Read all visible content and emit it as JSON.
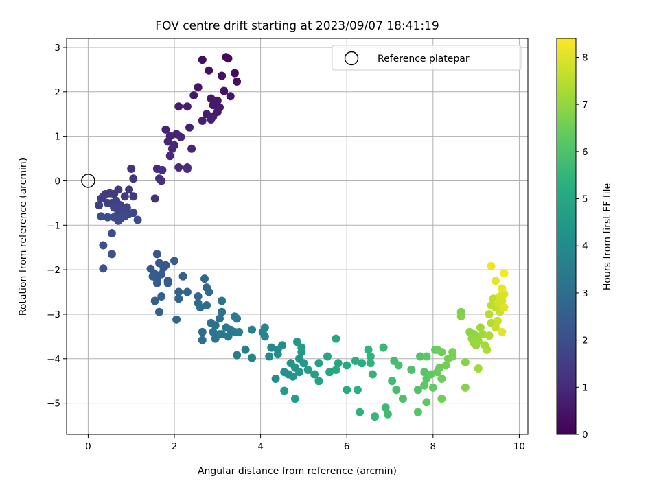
{
  "chart_data": {
    "type": "scatter",
    "title": "FOV centre drift starting at 2023/09/07 18:41:19",
    "xlabel": "Angular distance from reference (arcmin)",
    "ylabel": "Rotation from reference (arcmin)",
    "xlim": [
      -0.5,
      10.2
    ],
    "ylim": [
      -5.7,
      3.2
    ],
    "xticks": [
      "0",
      "2",
      "4",
      "6",
      "8",
      "10"
    ],
    "yticks": [
      "3",
      "2",
      "1",
      "0",
      "−1",
      "−2",
      "−3",
      "−4",
      "−5"
    ],
    "xtick_values": [
      0,
      2,
      4,
      6,
      8,
      10
    ],
    "ytick_values": [
      3,
      2,
      1,
      0,
      -1,
      -2,
      -3,
      -4,
      -5
    ],
    "grid": true,
    "legend": {
      "position": "top-right",
      "entries": [
        "Reference platepar"
      ]
    },
    "reference_point": {
      "x": 0,
      "y": 0
    },
    "colorbar": {
      "label": "Hours from first FF file",
      "colormap": "viridis",
      "range": [
        0,
        8.4
      ],
      "ticks": [
        "0",
        "1",
        "2",
        "3",
        "4",
        "5",
        "6",
        "7",
        "8"
      ],
      "tick_values": [
        0,
        1,
        2,
        3,
        4,
        5,
        6,
        7,
        8
      ]
    },
    "points": [
      [
        3.2,
        2.78,
        0.15
      ],
      [
        3.25,
        2.75,
        0.2
      ],
      [
        2.65,
        2.72,
        0.3
      ],
      [
        2.8,
        2.48,
        0.35
      ],
      [
        3.1,
        2.36,
        0.4
      ],
      [
        3.4,
        2.42,
        0.25
      ],
      [
        3.45,
        2.23,
        0.3
      ],
      [
        2.55,
        2.1,
        0.5
      ],
      [
        2.45,
        1.92,
        0.55
      ],
      [
        3.15,
        2.02,
        0.45
      ],
      [
        3.3,
        1.9,
        0.5
      ],
      [
        2.85,
        1.85,
        0.55
      ],
      [
        3.0,
        1.8,
        0.6
      ],
      [
        2.1,
        1.67,
        0.7
      ],
      [
        2.3,
        1.67,
        0.72
      ],
      [
        2.9,
        1.7,
        0.6
      ],
      [
        3.05,
        1.65,
        0.62
      ],
      [
        3.0,
        1.55,
        0.65
      ],
      [
        2.75,
        1.5,
        0.65
      ],
      [
        2.9,
        1.45,
        0.7
      ],
      [
        2.65,
        1.35,
        0.7
      ],
      [
        2.85,
        1.38,
        0.75
      ],
      [
        2.35,
        1.2,
        0.75
      ],
      [
        1.8,
        1.15,
        0.8
      ],
      [
        1.9,
        1.0,
        0.85
      ],
      [
        2.05,
        1.05,
        0.8
      ],
      [
        2.15,
        0.98,
        0.85
      ],
      [
        1.85,
        0.88,
        0.9
      ],
      [
        2.0,
        0.8,
        0.88
      ],
      [
        1.95,
        0.72,
        0.92
      ],
      [
        2.4,
        0.72,
        0.9
      ],
      [
        1.9,
        0.56,
        0.95
      ],
      [
        1.6,
        0.27,
        1.0
      ],
      [
        1.72,
        0.24,
        1.05
      ],
      [
        2.1,
        0.3,
        1.0
      ],
      [
        2.3,
        0.3,
        1.05
      ],
      [
        2.3,
        0.27,
        1.1
      ],
      [
        1.65,
        0.05,
        1.1
      ],
      [
        1.7,
        0.0,
        1.15
      ],
      [
        1.55,
        -0.4,
        1.2
      ],
      [
        1.0,
        0.27,
        1.2
      ],
      [
        1.05,
        0.05,
        1.25
      ],
      [
        0.95,
        -0.2,
        1.3
      ],
      [
        0.7,
        -0.2,
        1.35
      ],
      [
        0.85,
        -0.35,
        1.4
      ],
      [
        1.05,
        -0.35,
        1.4
      ],
      [
        0.6,
        -0.3,
        1.45
      ],
      [
        0.5,
        -0.28,
        1.45
      ],
      [
        0.4,
        -0.3,
        1.5
      ],
      [
        0.35,
        -0.35,
        1.5
      ],
      [
        0.3,
        -0.4,
        1.55
      ],
      [
        0.25,
        -0.55,
        1.55
      ],
      [
        0.45,
        -0.5,
        1.6
      ],
      [
        0.55,
        -0.5,
        1.6
      ],
      [
        0.65,
        -0.45,
        1.65
      ],
      [
        0.75,
        -0.55,
        1.65
      ],
      [
        0.6,
        -0.6,
        1.7
      ],
      [
        0.7,
        -0.7,
        1.7
      ],
      [
        0.8,
        -0.65,
        1.75
      ],
      [
        0.9,
        -0.6,
        1.75
      ],
      [
        0.95,
        -0.75,
        1.8
      ],
      [
        1.05,
        -0.72,
        1.8
      ],
      [
        0.85,
        -0.8,
        1.85
      ],
      [
        0.75,
        -0.85,
        1.85
      ],
      [
        0.7,
        -0.9,
        1.9
      ],
      [
        0.6,
        -0.82,
        1.9
      ],
      [
        0.45,
        -0.82,
        1.95
      ],
      [
        0.3,
        -0.8,
        1.95
      ],
      [
        1.15,
        -0.88,
        2.0
      ],
      [
        0.55,
        -1.18,
        2.0
      ],
      [
        0.35,
        -1.45,
        2.05
      ],
      [
        0.55,
        -1.65,
        2.1
      ],
      [
        0.35,
        -1.97,
        2.15
      ],
      [
        1.6,
        -1.65,
        2.2
      ],
      [
        1.65,
        -1.85,
        2.25
      ],
      [
        1.75,
        -1.95,
        2.25
      ],
      [
        1.8,
        -1.9,
        2.3
      ],
      [
        1.45,
        -1.98,
        2.3
      ],
      [
        1.55,
        -2.1,
        2.35
      ],
      [
        1.6,
        -2.2,
        2.35
      ],
      [
        1.7,
        -2.1,
        2.4
      ],
      [
        1.85,
        -2.25,
        2.4
      ],
      [
        1.85,
        -2.3,
        2.45
      ],
      [
        1.6,
        -2.3,
        2.45
      ],
      [
        1.5,
        -2.15,
        2.5
      ],
      [
        2.0,
        -1.8,
        2.5
      ],
      [
        2.2,
        -2.15,
        2.55
      ],
      [
        1.7,
        -2.6,
        2.6
      ],
      [
        1.55,
        -2.7,
        2.6
      ],
      [
        1.65,
        -2.95,
        2.65
      ],
      [
        2.1,
        -2.5,
        2.65
      ],
      [
        2.1,
        -2.65,
        2.7
      ],
      [
        2.3,
        -2.5,
        2.75
      ],
      [
        2.05,
        -3.12,
        2.75
      ],
      [
        2.55,
        -2.6,
        2.8
      ],
      [
        2.7,
        -2.2,
        2.8
      ],
      [
        2.75,
        -2.4,
        2.85
      ],
      [
        2.8,
        -2.5,
        2.85
      ],
      [
        2.55,
        -2.75,
        2.9
      ],
      [
        2.6,
        -2.85,
        2.95
      ],
      [
        2.75,
        -2.8,
        3.0
      ],
      [
        2.65,
        -3.4,
        3.0
      ],
      [
        2.65,
        -3.58,
        3.05
      ],
      [
        2.85,
        -3.2,
        3.1
      ],
      [
        2.95,
        -3.25,
        3.1
      ],
      [
        3.05,
        -3.1,
        3.15
      ],
      [
        3.1,
        -2.95,
        3.15
      ],
      [
        3.1,
        -2.7,
        3.2
      ],
      [
        2.9,
        -3.4,
        3.2
      ],
      [
        2.95,
        -3.55,
        3.25
      ],
      [
        3.1,
        -3.45,
        3.3
      ],
      [
        3.2,
        -3.3,
        3.3
      ],
      [
        3.25,
        -3.5,
        3.35
      ],
      [
        3.05,
        -3.45,
        3.35
      ],
      [
        3.3,
        -3.35,
        3.4
      ],
      [
        3.4,
        -3.4,
        3.45
      ],
      [
        3.4,
        -3.05,
        3.5
      ],
      [
        3.45,
        -3.1,
        3.5
      ],
      [
        3.5,
        -3.4,
        3.55
      ],
      [
        3.45,
        -3.92,
        3.6
      ],
      [
        3.65,
        -3.8,
        3.65
      ],
      [
        3.8,
        -3.35,
        3.7
      ],
      [
        3.8,
        -3.98,
        3.75
      ],
      [
        4.05,
        -3.4,
        3.8
      ],
      [
        4.1,
        -3.5,
        3.85
      ],
      [
        4.1,
        -3.3,
        3.85
      ],
      [
        4.25,
        -3.75,
        3.9
      ],
      [
        4.2,
        -3.95,
        3.95
      ],
      [
        4.4,
        -3.8,
        4.0
      ],
      [
        4.4,
        -3.9,
        4.05
      ],
      [
        4.5,
        -3.7,
        4.05
      ],
      [
        4.35,
        -4.45,
        4.1
      ],
      [
        4.55,
        -4.3,
        4.15
      ],
      [
        4.7,
        -4.1,
        4.2
      ],
      [
        4.65,
        -4.35,
        4.25
      ],
      [
        4.8,
        -4.2,
        4.3
      ],
      [
        4.75,
        -4.4,
        4.3
      ],
      [
        4.9,
        -4.0,
        4.35
      ],
      [
        4.85,
        -3.62,
        4.4
      ],
      [
        4.95,
        -3.85,
        4.4
      ],
      [
        4.9,
        -4.3,
        4.45
      ],
      [
        5.0,
        -4.1,
        4.5
      ],
      [
        4.95,
        -3.75,
        4.55
      ],
      [
        5.1,
        -4.25,
        4.6
      ],
      [
        4.55,
        -4.72,
        4.65
      ],
      [
        4.8,
        -4.9,
        4.7
      ],
      [
        5.25,
        -4.35,
        4.75
      ],
      [
        5.35,
        -4.1,
        4.8
      ],
      [
        5.35,
        -4.5,
        4.85
      ],
      [
        5.55,
        -3.95,
        4.9
      ],
      [
        5.6,
        -4.3,
        4.95
      ],
      [
        5.75,
        -3.55,
        5.0
      ],
      [
        5.8,
        -4.1,
        5.0
      ],
      [
        5.75,
        -4.25,
        5.05
      ],
      [
        6.0,
        -4.15,
        5.1
      ],
      [
        6.0,
        -4.7,
        5.15
      ],
      [
        6.2,
        -4.05,
        5.2
      ],
      [
        6.35,
        -4.1,
        5.25
      ],
      [
        6.25,
        -4.7,
        5.3
      ],
      [
        6.3,
        -5.2,
        5.35
      ],
      [
        6.5,
        -3.8,
        5.4
      ],
      [
        6.55,
        -3.95,
        5.45
      ],
      [
        6.55,
        -4.1,
        5.45
      ],
      [
        6.6,
        -4.35,
        5.5
      ],
      [
        6.65,
        -5.3,
        5.55
      ],
      [
        6.85,
        -3.75,
        5.6
      ],
      [
        6.9,
        -5.1,
        5.65
      ],
      [
        6.95,
        -5.25,
        5.7
      ],
      [
        7.05,
        -4.5,
        5.75
      ],
      [
        7.1,
        -4.05,
        5.8
      ],
      [
        7.15,
        -4.7,
        5.85
      ],
      [
        7.2,
        -4.15,
        5.9
      ],
      [
        7.3,
        -4.9,
        5.95
      ],
      [
        7.5,
        -4.25,
        6.0
      ],
      [
        7.65,
        -4.7,
        6.05
      ],
      [
        7.7,
        -3.95,
        6.1
      ],
      [
        7.65,
        -5.2,
        6.15
      ],
      [
        7.8,
        -4.3,
        6.15
      ],
      [
        7.85,
        -4.45,
        6.2
      ],
      [
        7.85,
        -3.95,
        6.25
      ],
      [
        7.8,
        -4.6,
        6.25
      ],
      [
        7.85,
        -4.98,
        6.3
      ],
      [
        7.95,
        -4.35,
        6.3
      ],
      [
        8.0,
        -4.65,
        6.35
      ],
      [
        8.05,
        -3.8,
        6.35
      ],
      [
        8.1,
        -4.3,
        6.4
      ],
      [
        8.15,
        -4.2,
        6.45
      ],
      [
        8.1,
        -3.8,
        6.45
      ],
      [
        8.2,
        -4.45,
        6.5
      ],
      [
        8.2,
        -3.85,
        6.5
      ],
      [
        8.2,
        -4.9,
        6.55
      ],
      [
        8.3,
        -4.15,
        6.6
      ],
      [
        8.35,
        -4.0,
        6.6
      ],
      [
        8.45,
        -3.95,
        6.65
      ],
      [
        8.45,
        -3.85,
        6.7
      ],
      [
        8.65,
        -2.95,
        6.75
      ],
      [
        8.65,
        -3.05,
        6.8
      ],
      [
        8.75,
        -4.08,
        6.85
      ],
      [
        8.75,
        -4.65,
        6.85
      ],
      [
        8.85,
        -3.4,
        6.9
      ],
      [
        8.95,
        -3.45,
        6.95
      ],
      [
        8.9,
        -3.55,
        7.0
      ],
      [
        9.0,
        -3.5,
        7.0
      ],
      [
        9.0,
        -3.7,
        7.05
      ],
      [
        9.05,
        -3.6,
        7.1
      ],
      [
        8.95,
        -3.65,
        7.1
      ],
      [
        9.1,
        -3.3,
        7.15
      ],
      [
        9.15,
        -3.45,
        7.15
      ],
      [
        9.05,
        -4.22,
        7.2
      ],
      [
        9.2,
        -3.7,
        7.25
      ],
      [
        9.25,
        -3.8,
        7.3
      ],
      [
        9.3,
        -3.48,
        7.35
      ],
      [
        9.35,
        -3.2,
        7.4
      ],
      [
        9.3,
        -3.0,
        7.45
      ],
      [
        9.35,
        -2.8,
        7.5
      ],
      [
        9.4,
        -2.65,
        7.55
      ],
      [
        9.45,
        -2.85,
        7.6
      ],
      [
        9.45,
        -3.3,
        7.65
      ],
      [
        9.5,
        -3.15,
        7.7
      ],
      [
        9.55,
        -2.95,
        7.75
      ],
      [
        9.5,
        -2.75,
        7.8
      ],
      [
        9.6,
        -2.7,
        7.85
      ],
      [
        9.55,
        -2.6,
        7.9
      ],
      [
        9.65,
        -2.55,
        7.95
      ],
      [
        9.65,
        -2.85,
        8.0
      ],
      [
        9.6,
        -3.4,
        8.05
      ],
      [
        9.45,
        -2.25,
        8.1
      ],
      [
        9.6,
        -2.42,
        8.15
      ],
      [
        9.35,
        -1.92,
        8.2
      ],
      [
        9.65,
        -2.08,
        8.3
      ]
    ]
  }
}
